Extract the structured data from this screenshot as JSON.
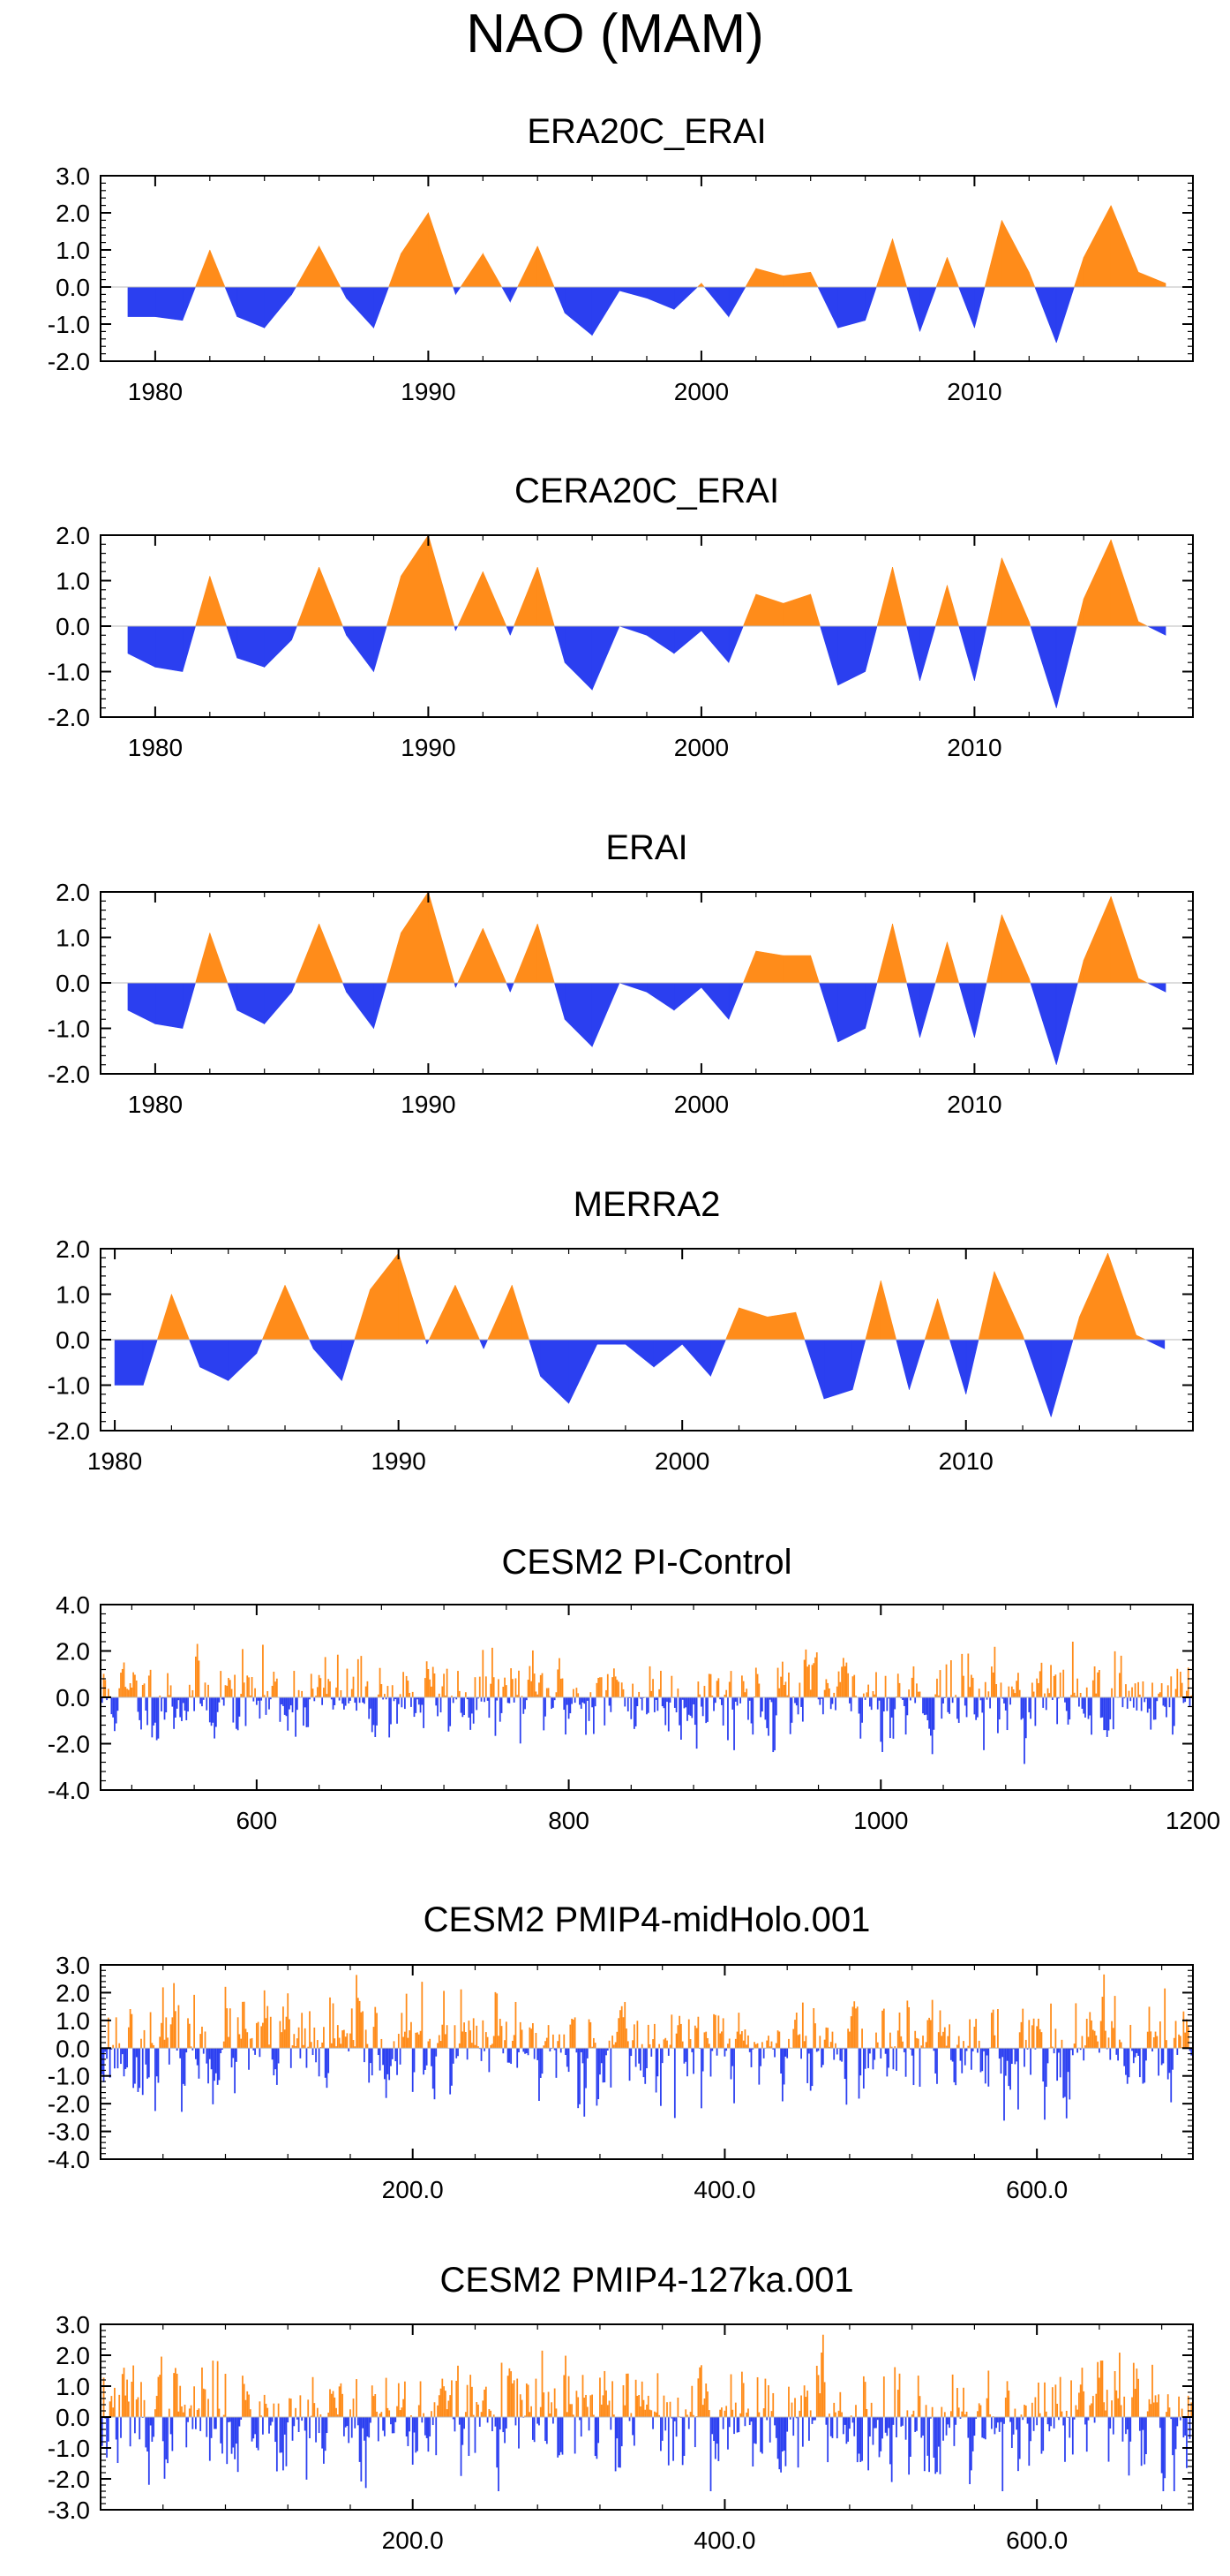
{
  "page_title": "NAO (MAM)",
  "colors": {
    "positive": "#ff8c1a",
    "negative": "#2b3ff0",
    "axis": "#000000"
  },
  "chart_data": [
    {
      "type": "area",
      "title": "ERA20C_ERAI",
      "x": [
        1979,
        1980,
        1981,
        1982,
        1983,
        1984,
        1985,
        1986,
        1987,
        1988,
        1989,
        1990,
        1991,
        1992,
        1993,
        1994,
        1995,
        1996,
        1997,
        1998,
        1999,
        2000,
        2001,
        2002,
        2003,
        2004,
        2005,
        2006,
        2007,
        2008,
        2009,
        2010,
        2011,
        2012,
        2013,
        2014,
        2015,
        2016,
        2017
      ],
      "values": [
        -0.8,
        -0.8,
        -0.9,
        1.0,
        -0.8,
        -1.1,
        -0.2,
        1.1,
        -0.3,
        -1.1,
        0.9,
        2.0,
        -0.2,
        0.9,
        -0.4,
        1.1,
        -0.7,
        -1.3,
        -0.1,
        -0.3,
        -0.6,
        0.1,
        -0.8,
        0.5,
        0.3,
        0.4,
        -1.1,
        -0.9,
        1.3,
        -1.2,
        0.8,
        -1.1,
        1.8,
        0.4,
        -1.5,
        0.8,
        2.2,
        0.4,
        0.1
      ],
      "ylim": [
        -2.0,
        3.0
      ],
      "yticks": [
        "3.0",
        "2.0",
        "1.0",
        "0.0",
        "-1.0",
        "-2.0"
      ],
      "xlim": [
        1978,
        2018
      ],
      "xticks": [
        "1980",
        "1990",
        "2000",
        "2010"
      ]
    },
    {
      "type": "area",
      "title": "CERA20C_ERAI",
      "x": [
        1979,
        1980,
        1981,
        1982,
        1983,
        1984,
        1985,
        1986,
        1987,
        1988,
        1989,
        1990,
        1991,
        1992,
        1993,
        1994,
        1995,
        1996,
        1997,
        1998,
        1999,
        2000,
        2001,
        2002,
        2003,
        2004,
        2005,
        2006,
        2007,
        2008,
        2009,
        2010,
        2011,
        2012,
        2013,
        2014,
        2015,
        2016,
        2017
      ],
      "values": [
        -0.6,
        -0.9,
        -1.0,
        1.1,
        -0.7,
        -0.9,
        -0.3,
        1.3,
        -0.2,
        -1.0,
        1.1,
        2.0,
        -0.1,
        1.2,
        -0.2,
        1.3,
        -0.8,
        -1.4,
        0.0,
        -0.2,
        -0.6,
        -0.1,
        -0.8,
        0.7,
        0.5,
        0.7,
        -1.3,
        -1.0,
        1.3,
        -1.2,
        0.9,
        -1.2,
        1.5,
        0.1,
        -1.8,
        0.6,
        1.9,
        0.1,
        -0.2
      ],
      "ylim": [
        -2.0,
        2.0
      ],
      "yticks": [
        "2.0",
        "1.0",
        "0.0",
        "-1.0",
        "-2.0"
      ],
      "xlim": [
        1978,
        2018
      ],
      "xticks": [
        "1980",
        "1990",
        "2000",
        "2010"
      ]
    },
    {
      "type": "area",
      "title": "ERAI",
      "x": [
        1979,
        1980,
        1981,
        1982,
        1983,
        1984,
        1985,
        1986,
        1987,
        1988,
        1989,
        1990,
        1991,
        1992,
        1993,
        1994,
        1995,
        1996,
        1997,
        1998,
        1999,
        2000,
        2001,
        2002,
        2003,
        2004,
        2005,
        2006,
        2007,
        2008,
        2009,
        2010,
        2011,
        2012,
        2013,
        2014,
        2015,
        2016,
        2017
      ],
      "values": [
        -0.6,
        -0.9,
        -1.0,
        1.1,
        -0.6,
        -0.9,
        -0.2,
        1.3,
        -0.2,
        -1.0,
        1.1,
        2.0,
        -0.1,
        1.2,
        -0.2,
        1.3,
        -0.8,
        -1.4,
        0.0,
        -0.2,
        -0.6,
        -0.1,
        -0.8,
        0.7,
        0.6,
        0.6,
        -1.3,
        -1.0,
        1.3,
        -1.2,
        0.9,
        -1.2,
        1.5,
        0.1,
        -1.8,
        0.5,
        1.9,
        0.1,
        -0.2
      ],
      "ylim": [
        -2.0,
        2.0
      ],
      "yticks": [
        "2.0",
        "1.0",
        "0.0",
        "-1.0",
        "-2.0"
      ],
      "xlim": [
        1978,
        2018
      ],
      "xticks": [
        "1980",
        "1990",
        "2000",
        "2010"
      ]
    },
    {
      "type": "area",
      "title": "MERRA2",
      "x": [
        1980,
        1981,
        1982,
        1983,
        1984,
        1985,
        1986,
        1987,
        1988,
        1989,
        1990,
        1991,
        1992,
        1993,
        1994,
        1995,
        1996,
        1997,
        1998,
        1999,
        2000,
        2001,
        2002,
        2003,
        2004,
        2005,
        2006,
        2007,
        2008,
        2009,
        2010,
        2011,
        2012,
        2013,
        2014,
        2015,
        2016,
        2017
      ],
      "values": [
        -1.0,
        -1.0,
        1.0,
        -0.6,
        -0.9,
        -0.3,
        1.2,
        -0.2,
        -0.9,
        1.1,
        1.9,
        -0.1,
        1.2,
        -0.2,
        1.2,
        -0.8,
        -1.4,
        -0.1,
        -0.1,
        -0.6,
        -0.1,
        -0.8,
        0.7,
        0.5,
        0.6,
        -1.3,
        -1.1,
        1.3,
        -1.1,
        0.9,
        -1.2,
        1.5,
        0.1,
        -1.7,
        0.5,
        1.9,
        0.1,
        -0.2
      ],
      "ylim": [
        -2.0,
        2.0
      ],
      "yticks": [
        "2.0",
        "1.0",
        "0.0",
        "-1.0",
        "-2.0"
      ],
      "xlim": [
        1979.5,
        2018
      ],
      "xticks": [
        "1980",
        "1990",
        "2000",
        "2010"
      ]
    },
    {
      "type": "bar",
      "title": "CESM2 PI-Control",
      "n_points": 700,
      "x_start": 501,
      "xlim": [
        500,
        1200
      ],
      "ylim": [
        -4.0,
        4.0
      ],
      "amplitude": 1.0,
      "seed": 11,
      "yticks": [
        "4.0",
        "2.0",
        "0.0",
        "-2.0",
        "-4.0"
      ],
      "xticks": [
        "600",
        "800",
        "1000",
        "1200"
      ]
    },
    {
      "type": "bar",
      "title": "CESM2 PMIP4-midHolo.001",
      "n_points": 700,
      "x_start": 1,
      "xlim": [
        0,
        700
      ],
      "ylim": [
        -4.0,
        3.0
      ],
      "amplitude": 1.0,
      "seed": 23,
      "yticks": [
        "3.0",
        "2.0",
        "1.0",
        "0.0",
        "-1.0",
        "-2.0",
        "-3.0",
        "-4.0"
      ],
      "xticks": [
        "200.0",
        "400.0",
        "600.0"
      ]
    },
    {
      "type": "bar",
      "title": "CESM2 PMIP4-127ka.001",
      "n_points": 700,
      "x_start": 1,
      "xlim": [
        0,
        700
      ],
      "ylim": [
        -3.0,
        3.0
      ],
      "amplitude": 1.0,
      "seed": 37,
      "yticks": [
        "3.0",
        "2.0",
        "1.0",
        "0.0",
        "-1.0",
        "-2.0",
        "-3.0"
      ],
      "xticks": [
        "200.0",
        "400.0",
        "600.0"
      ]
    }
  ]
}
